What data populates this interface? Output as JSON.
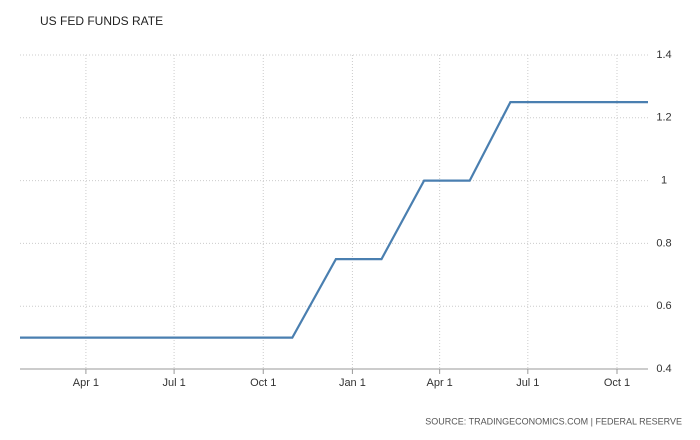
{
  "chart_data": {
    "type": "line",
    "title": "US FED FUNDS RATE",
    "source": "SOURCE: TRADINGECONOMICS.COM | FEDERAL RESERVE",
    "x": [
      23,
      304,
      349,
      396,
      440,
      487,
      529,
      671
    ],
    "series": [
      {
        "name": "US Fed Funds Rate",
        "color": "#4a7fb0",
        "values": [
          0.5,
          0.5,
          0.75,
          0.75,
          1,
          1,
          1.25,
          1.25
        ]
      }
    ],
    "xlim": [
      23,
      671
    ],
    "xticks": [
      {
        "value": 91,
        "label": "Apr 1"
      },
      {
        "value": 182,
        "label": "Jul 1"
      },
      {
        "value": 274,
        "label": "Oct 1"
      },
      {
        "value": 366,
        "label": "Jan 1"
      },
      {
        "value": 456,
        "label": "Apr 1"
      },
      {
        "value": 547,
        "label": "Jul 1"
      },
      {
        "value": 639,
        "label": "Oct 1"
      }
    ],
    "ylim": [
      0.4,
      1.4
    ],
    "yticks": [
      0.4,
      0.6,
      0.8,
      1,
      1.2,
      1.4
    ],
    "grid": true
  }
}
